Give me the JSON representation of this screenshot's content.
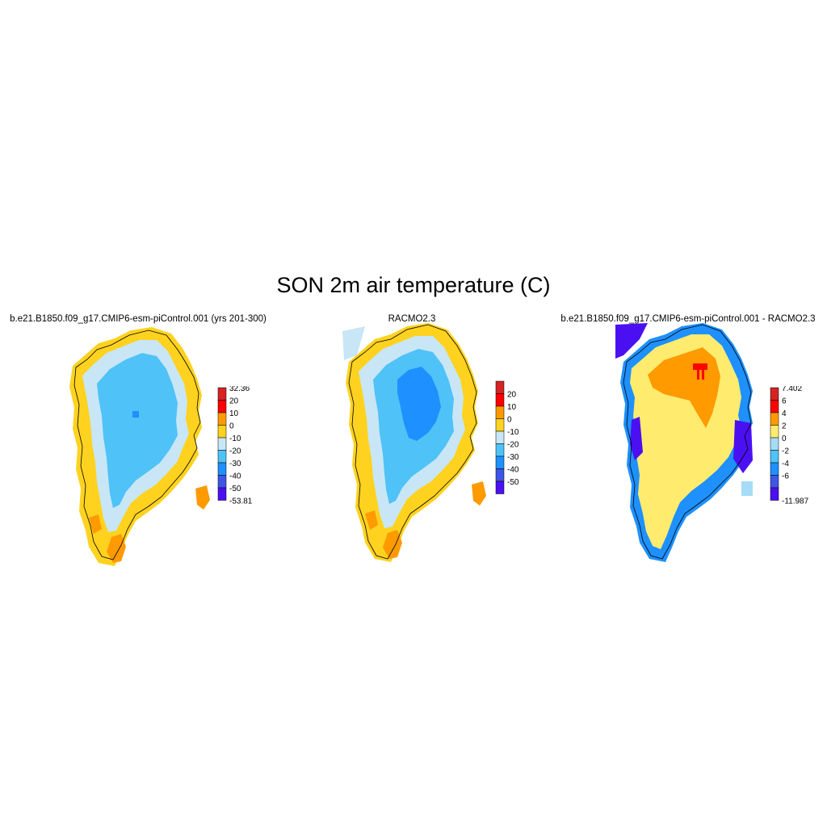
{
  "figure": {
    "title": "SON 2m air temperature (C)"
  },
  "chart_data": [
    {
      "type": "heatmap",
      "title": "b.e21.B1850.f09_g17.CMIP6-esm-piControl.001 (yrs 201-300)",
      "region": "Greenland",
      "colorbar": {
        "labels": [
          "32.36",
          "20",
          "10",
          "0",
          "-10",
          "-20",
          "-30",
          "-40",
          "-50",
          "-53.81"
        ],
        "boundaries": [
          32.36,
          20,
          10,
          0,
          -10,
          -20,
          -30,
          -40,
          -50,
          -53.81
        ],
        "colors": [
          "#d62323",
          "#ff0000",
          "#ff9a00",
          "#ffd21f",
          "#c8e6f6",
          "#4fc2f7",
          "#1e90ff",
          "#3f55e6",
          "#4b10f2"
        ]
      },
      "fields": {
        "margin": "#ffd21f",
        "inland": "#c8e6f6",
        "interior": "#4fc2f7",
        "coastal_warm": "#ff9a00"
      }
    },
    {
      "type": "heatmap",
      "title": "RACMO2.3",
      "region": "Greenland",
      "colorbar": {
        "labels": [
          "20",
          "10",
          "0",
          "-10",
          "-20",
          "-30",
          "-40",
          "-50"
        ],
        "boundaries": [
          30,
          20,
          10,
          0,
          -10,
          -20,
          -30,
          -40,
          -50,
          -60
        ],
        "colors": [
          "#d62323",
          "#ff0000",
          "#ff9a00",
          "#ffd21f",
          "#c8e6f6",
          "#4fc2f7",
          "#1e90ff",
          "#3f55e6",
          "#4b10f2"
        ]
      },
      "fields": {
        "margin": "#ffd21f",
        "inland": "#c8e6f6",
        "interior": "#4fc2f7",
        "core": "#1e90ff",
        "coastal_warm": "#ff9a00"
      }
    },
    {
      "type": "heatmap",
      "title": "b.e21.B1850.f09_g17.CMIP6-esm-piControl.001 - RACMO2.3",
      "region": "Greenland",
      "colorbar": {
        "labels": [
          "7.402",
          "6",
          "4",
          "2",
          "0",
          "-2",
          "-4",
          "-6",
          "-11.987"
        ],
        "boundaries": [
          7.402,
          6,
          4,
          2,
          0,
          -2,
          -4,
          -6,
          -8,
          -11.987
        ],
        "colors": [
          "#d62323",
          "#ff0000",
          "#ff9a00",
          "#ffec6e",
          "#a6dcf6",
          "#4fc2f7",
          "#1e90ff",
          "#3f55e6",
          "#4b10f2"
        ]
      },
      "fields": {
        "body": "#ffec6e",
        "north_warm": "#ff9a00",
        "hotspot": "#ff0000",
        "edge_cold": "#4b10f2",
        "edge_mid": "#1e90ff"
      }
    }
  ]
}
